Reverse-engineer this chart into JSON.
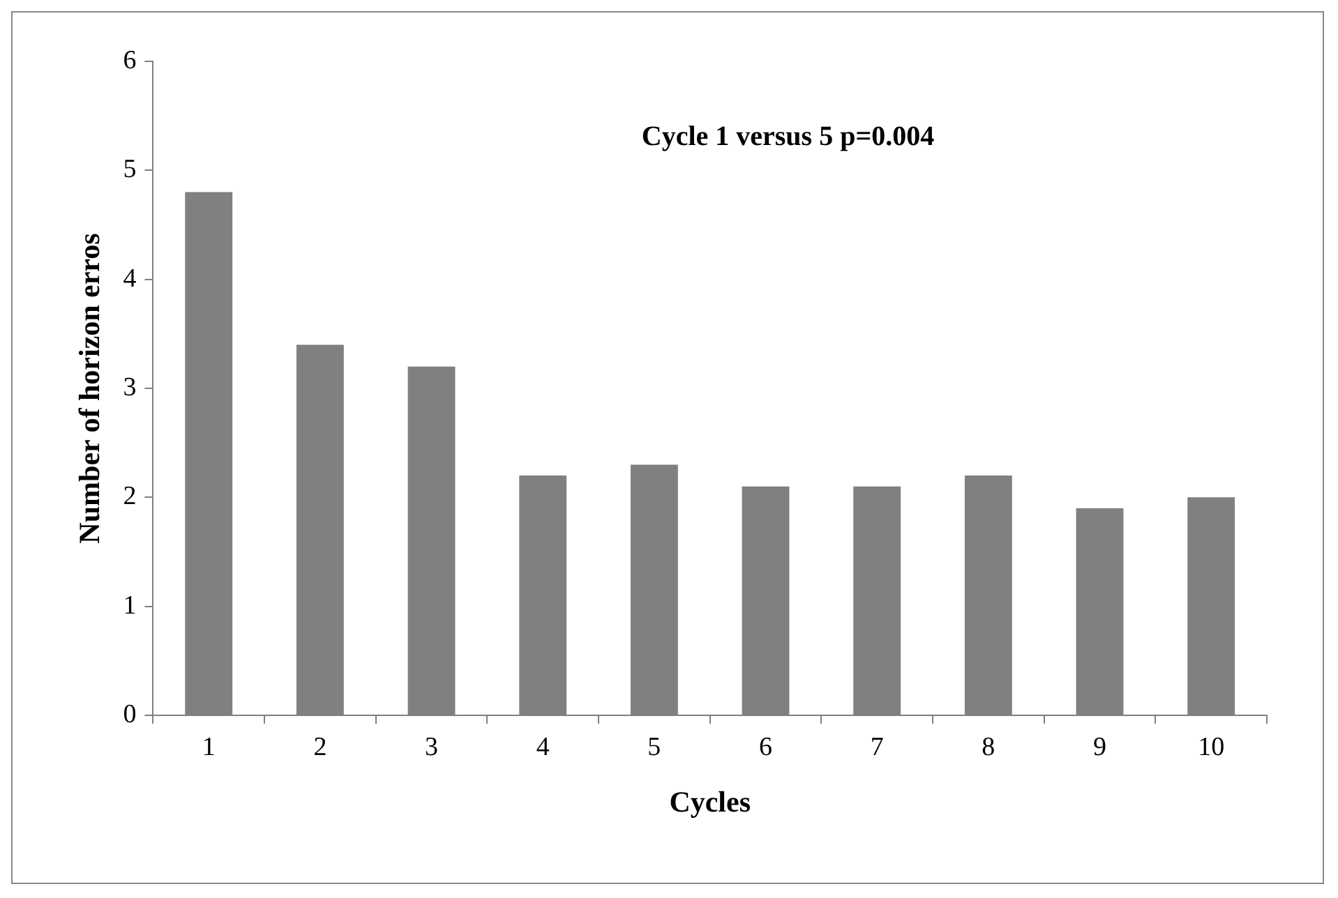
{
  "chart_data": {
    "type": "bar",
    "xlabel": "Cycles",
    "ylabel": "Number of horizon erros",
    "categories": [
      "1",
      "2",
      "3",
      "4",
      "5",
      "6",
      "7",
      "8",
      "9",
      "10"
    ],
    "values": [
      4.8,
      3.4,
      3.2,
      2.2,
      2.3,
      2.1,
      2.1,
      2.2,
      1.9,
      2.0
    ],
    "color": "#808080",
    "ylim": [
      0,
      6
    ],
    "yticks": [
      0,
      1,
      2,
      3,
      4,
      5,
      6
    ],
    "grid": false,
    "legend": false,
    "annotations": [
      "Cycle 1 versus 5 p=0.004"
    ]
  }
}
